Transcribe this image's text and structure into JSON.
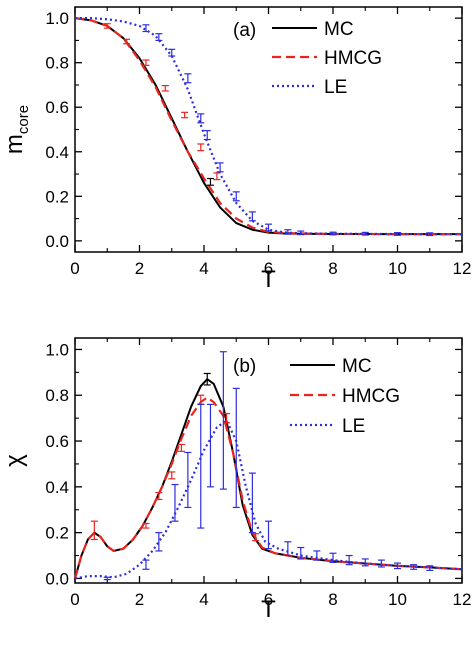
{
  "chart_data": [
    {
      "type": "line",
      "panel_label": "(a)",
      "xlabel": "T",
      "ylabel_main": "m",
      "ylabel_sub": "core",
      "xlim": [
        0,
        12
      ],
      "ylim": [
        -0.05,
        1.05
      ],
      "xticks": [
        0,
        2,
        4,
        6,
        8,
        10,
        12
      ],
      "yticks": [
        0.0,
        0.2,
        0.4,
        0.6,
        0.8,
        1.0
      ],
      "grid": false,
      "legend_position": "top-right",
      "series": [
        {
          "name": "MC",
          "style": "solid",
          "color": "#000000",
          "x": [
            0,
            0.5,
            1,
            1.5,
            2,
            2.5,
            3,
            3.5,
            4,
            4.5,
            5,
            5.5,
            6,
            6.5,
            7,
            8,
            9,
            10,
            11,
            12
          ],
          "y": [
            1.0,
            0.99,
            0.965,
            0.91,
            0.82,
            0.7,
            0.55,
            0.4,
            0.26,
            0.15,
            0.08,
            0.05,
            0.037,
            0.033,
            0.032,
            0.031,
            0.031,
            0.03,
            0.03,
            0.03
          ]
        },
        {
          "name": "HMCG",
          "style": "dashed",
          "color": "#e8251f",
          "x": [
            0,
            0.5,
            1,
            1.5,
            2,
            2.5,
            3,
            3.5,
            4,
            4.5,
            5,
            5.5,
            6,
            6.5,
            7,
            8,
            9,
            10,
            11,
            12
          ],
          "y": [
            1.0,
            0.99,
            0.965,
            0.91,
            0.81,
            0.69,
            0.54,
            0.4,
            0.28,
            0.17,
            0.1,
            0.06,
            0.04,
            0.035,
            0.033,
            0.031,
            0.031,
            0.03,
            0.03,
            0.03
          ]
        },
        {
          "name": "LE",
          "style": "dotted",
          "color": "#2d2de0",
          "x": [
            0,
            0.5,
            1,
            1.5,
            2,
            2.5,
            3,
            3.5,
            4,
            4.5,
            5,
            5.5,
            6,
            6.5,
            7,
            8,
            9,
            10,
            11,
            12
          ],
          "y": [
            1.0,
            1.0,
            0.995,
            0.985,
            0.965,
            0.92,
            0.83,
            0.68,
            0.48,
            0.3,
            0.17,
            0.09,
            0.05,
            0.038,
            0.034,
            0.032,
            0.031,
            0.031,
            0.03,
            0.03
          ]
        }
      ],
      "errorbars": [
        {
          "series": "HMCG",
          "color": "#e8251f",
          "x": [
            1.0,
            1.6,
            2.2,
            2.8,
            3.4,
            3.9,
            4.4
          ],
          "y": [
            0.965,
            0.895,
            0.8,
            0.685,
            0.565,
            0.42,
            0.29
          ],
          "err": [
            0.01,
            0.01,
            0.012,
            0.012,
            0.012,
            0.015,
            0.015
          ]
        },
        {
          "series": "MC",
          "color": "#000000",
          "x": [
            4.2
          ],
          "y": [
            0.265
          ],
          "err": [
            0.015
          ]
        },
        {
          "series": "LE",
          "color": "#2d2de0",
          "x": [
            2.2,
            2.6,
            3.0,
            3.5,
            3.9,
            4.1,
            4.5,
            5.0,
            5.5,
            6.0,
            6.6,
            7.0,
            8.0,
            9.0,
            10.0,
            11.0
          ],
          "y": [
            0.955,
            0.915,
            0.845,
            0.73,
            0.55,
            0.475,
            0.33,
            0.2,
            0.11,
            0.06,
            0.04,
            0.036,
            0.033,
            0.032,
            0.031,
            0.03
          ],
          "err": [
            0.015,
            0.015,
            0.015,
            0.02,
            0.02,
            0.02,
            0.02,
            0.02,
            0.02,
            0.015,
            0.01,
            0.008,
            0.006,
            0.006,
            0.006,
            0.006
          ]
        }
      ]
    },
    {
      "type": "line",
      "panel_label": "(b)",
      "xlabel": "T",
      "ylabel_main": "χ",
      "ylabel_sub": "",
      "xlim": [
        0,
        12
      ],
      "ylim": [
        -0.02,
        1.05
      ],
      "xticks": [
        0,
        2,
        4,
        6,
        8,
        10,
        12
      ],
      "yticks": [
        0.0,
        0.2,
        0.4,
        0.6,
        0.8,
        1.0
      ],
      "grid": false,
      "legend_position": "top-right",
      "series": [
        {
          "name": "MC",
          "style": "solid",
          "color": "#000000",
          "x": [
            0,
            0.2,
            0.4,
            0.6,
            0.8,
            1.0,
            1.2,
            1.5,
            1.8,
            2.1,
            2.4,
            2.7,
            3.0,
            3.3,
            3.6,
            3.9,
            4.1,
            4.3,
            4.6,
            4.9,
            5.2,
            5.5,
            5.8,
            6.2,
            6.6,
            7,
            8,
            9,
            10,
            11,
            12
          ],
          "y": [
            0.0,
            0.1,
            0.17,
            0.2,
            0.18,
            0.14,
            0.12,
            0.13,
            0.17,
            0.23,
            0.31,
            0.4,
            0.51,
            0.63,
            0.75,
            0.84,
            0.87,
            0.85,
            0.75,
            0.55,
            0.32,
            0.19,
            0.13,
            0.11,
            0.1,
            0.09,
            0.075,
            0.065,
            0.055,
            0.048,
            0.04
          ]
        },
        {
          "name": "HMCG",
          "style": "dashed",
          "color": "#e8251f",
          "x": [
            0,
            0.2,
            0.4,
            0.6,
            0.8,
            1.0,
            1.2,
            1.5,
            1.8,
            2.1,
            2.4,
            2.7,
            3.0,
            3.3,
            3.6,
            3.9,
            4.1,
            4.3,
            4.6,
            4.9,
            5.2,
            5.5,
            5.8,
            6.2,
            6.6,
            7,
            8,
            9,
            10,
            11,
            12
          ],
          "y": [
            0.0,
            0.1,
            0.17,
            0.2,
            0.18,
            0.14,
            0.12,
            0.13,
            0.17,
            0.23,
            0.31,
            0.4,
            0.5,
            0.61,
            0.71,
            0.77,
            0.79,
            0.77,
            0.71,
            0.55,
            0.34,
            0.2,
            0.135,
            0.11,
            0.1,
            0.09,
            0.075,
            0.065,
            0.055,
            0.048,
            0.04
          ]
        },
        {
          "name": "LE",
          "style": "dotted",
          "color": "#2d2de0",
          "x": [
            0,
            0.4,
            0.8,
            1.2,
            1.6,
            2.0,
            2.4,
            2.8,
            3.2,
            3.6,
            4.0,
            4.4,
            4.7,
            5.0,
            5.3,
            5.6,
            5.9,
            6.3,
            7,
            8,
            9,
            10,
            11,
            12
          ],
          "y": [
            0.0,
            0.01,
            0.01,
            0.005,
            0.02,
            0.06,
            0.12,
            0.2,
            0.31,
            0.43,
            0.56,
            0.66,
            0.69,
            0.6,
            0.4,
            0.24,
            0.16,
            0.13,
            0.1,
            0.08,
            0.065,
            0.055,
            0.048,
            0.04
          ]
        }
      ],
      "errorbars": [
        {
          "series": "HMCG",
          "color": "#e8251f",
          "x": [
            0.6,
            2.2,
            2.6,
            3.0,
            3.3,
            3.9,
            4.7,
            5.6
          ],
          "y": [
            0.21,
            0.23,
            0.36,
            0.45,
            0.57,
            0.78,
            0.7,
            0.18
          ],
          "err": [
            0.04,
            0.01,
            0.015,
            0.015,
            0.015,
            0.02,
            0.02,
            0.015
          ]
        },
        {
          "series": "MC",
          "color": "#000000",
          "x": [
            4.1
          ],
          "y": [
            0.87
          ],
          "err": [
            0.025
          ]
        },
        {
          "series": "LE",
          "color": "#2d2de0",
          "x": [
            1.0,
            2.2,
            2.6,
            3.1,
            3.5,
            3.9,
            4.2,
            4.6,
            5.0,
            5.5,
            6.0,
            6.6,
            7.0,
            7.5,
            8.0,
            8.5,
            9.0,
            9.5,
            10.0,
            10.5,
            11.0
          ],
          "y": [
            0.0,
            0.06,
            0.16,
            0.33,
            0.43,
            0.49,
            0.58,
            0.69,
            0.57,
            0.33,
            0.19,
            0.13,
            0.11,
            0.1,
            0.09,
            0.08,
            0.07,
            0.065,
            0.055,
            0.05,
            0.045
          ],
          "err": [
            0.005,
            0.02,
            0.04,
            0.08,
            0.12,
            0.27,
            0.18,
            0.3,
            0.26,
            0.13,
            0.06,
            0.03,
            0.025,
            0.02,
            0.02,
            0.02,
            0.015,
            0.015,
            0.012,
            0.01,
            0.01
          ]
        }
      ]
    }
  ]
}
